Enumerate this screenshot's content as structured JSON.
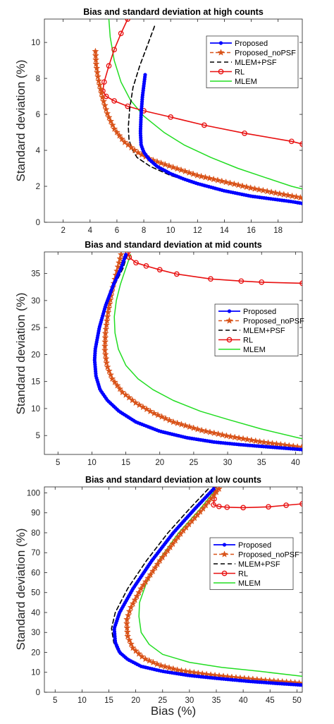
{
  "figure": {
    "xlabel": "Bias (%)"
  },
  "chart_data": [
    {
      "type": "line",
      "title": "Bias and standard deviation at high counts",
      "xlabel": "",
      "ylabel": "Standard deviation (%)",
      "xlim": [
        0.6,
        19.8
      ],
      "ylim": [
        0,
        11.3
      ],
      "xticks": [
        2,
        4,
        6,
        8,
        10,
        12,
        14,
        16,
        18
      ],
      "yticks": [
        0,
        2,
        4,
        6,
        8,
        10
      ],
      "legend": "top-right",
      "series": [
        {
          "name": "Proposed",
          "color": "#0000ff",
          "marker": "dot",
          "width": 2.2,
          "dash": "",
          "points": [
            [
              8.1,
              8.2
            ],
            [
              7.9,
              7.0
            ],
            [
              7.8,
              6.0
            ],
            [
              7.75,
              5.0
            ],
            [
              7.8,
              4.3
            ],
            [
              8.0,
              3.9
            ],
            [
              8.4,
              3.5
            ],
            [
              9.0,
              3.1
            ],
            [
              10,
              2.7
            ],
            [
              11,
              2.4
            ],
            [
              12,
              2.15
            ],
            [
              13,
              1.95
            ],
            [
              14,
              1.75
            ],
            [
              15,
              1.6
            ],
            [
              16,
              1.45
            ],
            [
              17,
              1.35
            ],
            [
              18,
              1.25
            ],
            [
              19,
              1.15
            ],
            [
              19.8,
              1.05
            ]
          ]
        },
        {
          "name": "Proposed_noPSF",
          "color": "#d95319",
          "marker": "star",
          "width": 1.5,
          "dash": "5,3",
          "points": [
            [
              4.4,
              9.5
            ],
            [
              4.45,
              8.8
            ],
            [
              4.6,
              8.0
            ],
            [
              4.9,
              7.0
            ],
            [
              5.3,
              6.0
            ],
            [
              5.8,
              5.2
            ],
            [
              6.5,
              4.5
            ],
            [
              7.5,
              3.9
            ],
            [
              8.5,
              3.5
            ],
            [
              10,
              3.1
            ],
            [
              12,
              2.6
            ],
            [
              14,
              2.25
            ],
            [
              16,
              1.9
            ],
            [
              18,
              1.6
            ],
            [
              19.8,
              1.35
            ]
          ]
        },
        {
          "name": "MLEM+PSF",
          "color": "#000000",
          "marker": "none",
          "width": 1.6,
          "dash": "6,4",
          "points": [
            [
              8.8,
              10.9
            ],
            [
              8.3,
              9.9
            ],
            [
              7.7,
              8.7
            ],
            [
              7.2,
              7.5
            ],
            [
              6.95,
              6.3
            ],
            [
              6.85,
              5.3
            ],
            [
              6.9,
              4.6
            ],
            [
              7.1,
              4.1
            ],
            [
              7.5,
              3.6
            ],
            [
              8.5,
              3.1
            ],
            [
              10,
              2.6
            ],
            [
              12,
              2.15
            ],
            [
              14,
              1.8
            ],
            [
              16,
              1.5
            ],
            [
              18,
              1.25
            ],
            [
              19.8,
              1.05
            ]
          ]
        },
        {
          "name": "RL",
          "color": "#e81010",
          "marker": "circle",
          "width": 1.6,
          "dash": "",
          "points": [
            [
              6.8,
              11.3
            ],
            [
              6.3,
              10.5
            ],
            [
              5.8,
              9.6
            ],
            [
              5.4,
              8.7
            ],
            [
              5.05,
              7.8
            ],
            [
              4.95,
              7.3
            ],
            [
              5.2,
              7.0
            ],
            [
              5.8,
              6.75
            ],
            [
              6.8,
              6.45
            ],
            [
              8,
              6.2
            ],
            [
              10,
              5.85
            ],
            [
              12.5,
              5.4
            ],
            [
              15.5,
              4.95
            ],
            [
              19,
              4.5
            ],
            [
              19.8,
              4.35
            ]
          ]
        },
        {
          "name": "MLEM",
          "color": "#22dd22",
          "marker": "none",
          "width": 1.5,
          "dash": "",
          "points": [
            [
              5.4,
              11.3
            ],
            [
              5.5,
              10.3
            ],
            [
              5.8,
              9.0
            ],
            [
              6.3,
              7.8
            ],
            [
              7.0,
              6.8
            ],
            [
              8.0,
              5.9
            ],
            [
              9.5,
              5.0
            ],
            [
              11,
              4.3
            ],
            [
              13,
              3.6
            ],
            [
              15,
              3.0
            ],
            [
              17,
              2.5
            ],
            [
              19,
              2.0
            ],
            [
              19.8,
              1.85
            ]
          ]
        }
      ]
    },
    {
      "type": "line",
      "title": "Bias and standard deviation at mid counts",
      "xlabel": "",
      "ylabel": "Standard deviation (%)",
      "xlim": [
        3,
        41
      ],
      "ylim": [
        1.5,
        39
      ],
      "xticks": [
        5,
        10,
        15,
        20,
        25,
        30,
        35,
        40
      ],
      "yticks": [
        5,
        10,
        15,
        20,
        25,
        30,
        35
      ],
      "legend": "center-right",
      "series": [
        {
          "name": "Proposed",
          "color": "#0000ff",
          "marker": "dot",
          "width": 2.2,
          "dash": "",
          "points": [
            [
              15,
              38.5
            ],
            [
              14.3,
              36
            ],
            [
              13.2,
              33
            ],
            [
              12,
              29
            ],
            [
              11.1,
              25
            ],
            [
              10.5,
              21
            ],
            [
              10.4,
              19
            ],
            [
              10.6,
              16
            ],
            [
              11.2,
              13.5
            ],
            [
              12.3,
              11.5
            ],
            [
              14,
              9.5
            ],
            [
              16.5,
              7.5
            ],
            [
              20,
              5.8
            ],
            [
              24,
              4.6
            ],
            [
              28,
              3.8
            ],
            [
              32,
              3.3
            ],
            [
              36,
              2.9
            ],
            [
              41,
              2.4
            ]
          ]
        },
        {
          "name": "Proposed_noPSF",
          "color": "#d95319",
          "marker": "star",
          "width": 1.5,
          "dash": "5,3",
          "points": [
            [
              14.3,
              38.5
            ],
            [
              13.8,
              36
            ],
            [
              13.0,
              32
            ],
            [
              12.4,
              28
            ],
            [
              12.0,
              24
            ],
            [
              11.9,
              21
            ],
            [
              12.2,
              18
            ],
            [
              13,
              15.5
            ],
            [
              14.5,
              13
            ],
            [
              16.5,
              11
            ],
            [
              19,
              9.2
            ],
            [
              22,
              7.5
            ],
            [
              26,
              6.0
            ],
            [
              30,
              4.9
            ],
            [
              35,
              3.8
            ],
            [
              41,
              2.8
            ]
          ]
        },
        {
          "name": "MLEM+PSF",
          "color": "#000000",
          "marker": "none",
          "width": 1.6,
          "dash": "6,4",
          "points": [
            [
              15.2,
              38.5
            ],
            [
              14.6,
              36
            ],
            [
              13.4,
              33
            ],
            [
              12,
              29
            ],
            [
              11,
              25
            ],
            [
              10.4,
              21
            ],
            [
              10.3,
              19
            ],
            [
              10.5,
              16
            ],
            [
              11.1,
              13.5
            ],
            [
              12.2,
              11.5
            ],
            [
              14,
              9.4
            ],
            [
              16.5,
              7.4
            ],
            [
              20,
              5.6
            ],
            [
              24,
              4.4
            ],
            [
              28,
              3.6
            ],
            [
              33,
              3.0
            ],
            [
              41,
              2.3
            ]
          ]
        },
        {
          "name": "RL",
          "color": "#e81010",
          "marker": "circle",
          "width": 1.6,
          "dash": "",
          "points": [
            [
              15.3,
              39
            ],
            [
              15.5,
              38
            ],
            [
              16.5,
              37
            ],
            [
              18,
              36.4
            ],
            [
              20,
              35.7
            ],
            [
              22.5,
              34.9
            ],
            [
              27.5,
              34.0
            ],
            [
              32,
              33.6
            ],
            [
              35,
              33.4
            ],
            [
              41,
              33.2
            ]
          ]
        },
        {
          "name": "MLEM",
          "color": "#22dd22",
          "marker": "none",
          "width": 1.5,
          "dash": "",
          "points": [
            [
              15.7,
              38.5
            ],
            [
              15.0,
              36
            ],
            [
              14.2,
              33
            ],
            [
              13.6,
              30
            ],
            [
              13.3,
              27
            ],
            [
              13.4,
              24
            ],
            [
              13.9,
              21
            ],
            [
              15,
              18
            ],
            [
              16.8,
              15.5
            ],
            [
              19,
              13.5
            ],
            [
              22,
              11.5
            ],
            [
              26,
              9.5
            ],
            [
              30,
              8.0
            ],
            [
              35,
              6.2
            ],
            [
              41,
              4.4
            ]
          ]
        }
      ]
    },
    {
      "type": "line",
      "title": "Bias and standard deviation at low counts",
      "xlabel": "Bias (%)",
      "ylabel": "Standard deviation (%)",
      "xlim": [
        3,
        51
      ],
      "ylim": [
        0,
        103
      ],
      "xticks": [
        5,
        10,
        15,
        20,
        25,
        30,
        35,
        40,
        45,
        50
      ],
      "yticks": [
        0,
        10,
        20,
        30,
        40,
        50,
        60,
        70,
        80,
        90,
        100
      ],
      "legend": "center-right",
      "series": [
        {
          "name": "Proposed",
          "color": "#0000ff",
          "marker": "dot",
          "width": 2.2,
          "dash": "",
          "points": [
            [
              34.5,
              102
            ],
            [
              31,
              92
            ],
            [
              27,
              80
            ],
            [
              23,
              66
            ],
            [
              19.5,
              52
            ],
            [
              17,
              40
            ],
            [
              16,
              32
            ],
            [
              16.2,
              25
            ],
            [
              17,
              20
            ],
            [
              18.5,
              16.5
            ],
            [
              21,
              13
            ],
            [
              25,
              10.5
            ],
            [
              30,
              8.4
            ],
            [
              35,
              7.0
            ],
            [
              41,
              5.5
            ],
            [
              46,
              4.5
            ],
            [
              51,
              3.6
            ]
          ]
        },
        {
          "name": "Proposed_noPSF",
          "color": "#d95319",
          "marker": "star",
          "width": 1.5,
          "dash": "5,3",
          "points": [
            [
              35.5,
              102
            ],
            [
              32.5,
              92
            ],
            [
              28.5,
              80
            ],
            [
              24.5,
              66
            ],
            [
              21,
              52
            ],
            [
              19,
              42
            ],
            [
              18.3,
              36
            ],
            [
              18.5,
              28
            ],
            [
              19.5,
              22
            ],
            [
              21.5,
              17
            ],
            [
              24.5,
              13.5
            ],
            [
              28,
              11
            ],
            [
              33,
              9.0
            ],
            [
              38,
              7.5
            ],
            [
              44,
              6.0
            ],
            [
              51,
              4.5
            ]
          ]
        },
        {
          "name": "MLEM+PSF",
          "color": "#000000",
          "marker": "none",
          "width": 1.6,
          "dash": "6,4",
          "points": [
            [
              33.5,
              102
            ],
            [
              30,
              92
            ],
            [
              26,
              80
            ],
            [
              22,
              66
            ],
            [
              18.5,
              52
            ],
            [
              16.2,
              40
            ],
            [
              15.5,
              32
            ],
            [
              15.9,
              25
            ],
            [
              16.8,
              20
            ],
            [
              18.5,
              16
            ],
            [
              21,
              13
            ],
            [
              25,
              10.3
            ],
            [
              30,
              8.2
            ],
            [
              36,
              6.6
            ],
            [
              43,
              5.5
            ],
            [
              51,
              4.4
            ]
          ]
        },
        {
          "name": "RL",
          "color": "#e81010",
          "marker": "circle",
          "width": 1.6,
          "dash": "",
          "points": [
            [
              34.8,
              101.5
            ],
            [
              34.6,
              97
            ],
            [
              34.5,
              94
            ],
            [
              35.5,
              93.2
            ],
            [
              37,
              92.8
            ],
            [
              40,
              92.6
            ],
            [
              44.7,
              93.0
            ],
            [
              48,
              93.8
            ],
            [
              51,
              94.5
            ]
          ]
        },
        {
          "name": "MLEM",
          "color": "#22dd22",
          "marker": "none",
          "width": 1.5,
          "dash": "",
          "points": [
            [
              35,
              102
            ],
            [
              32,
              92
            ],
            [
              28,
              80
            ],
            [
              24.5,
              67
            ],
            [
              22,
              55
            ],
            [
              20.7,
              45
            ],
            [
              20.6,
              38
            ],
            [
              21,
              30
            ],
            [
              22.5,
              24
            ],
            [
              25,
              19
            ],
            [
              30,
              15
            ],
            [
              36,
              12.5
            ],
            [
              43,
              10.5
            ],
            [
              51,
              8.0
            ]
          ]
        }
      ]
    }
  ]
}
